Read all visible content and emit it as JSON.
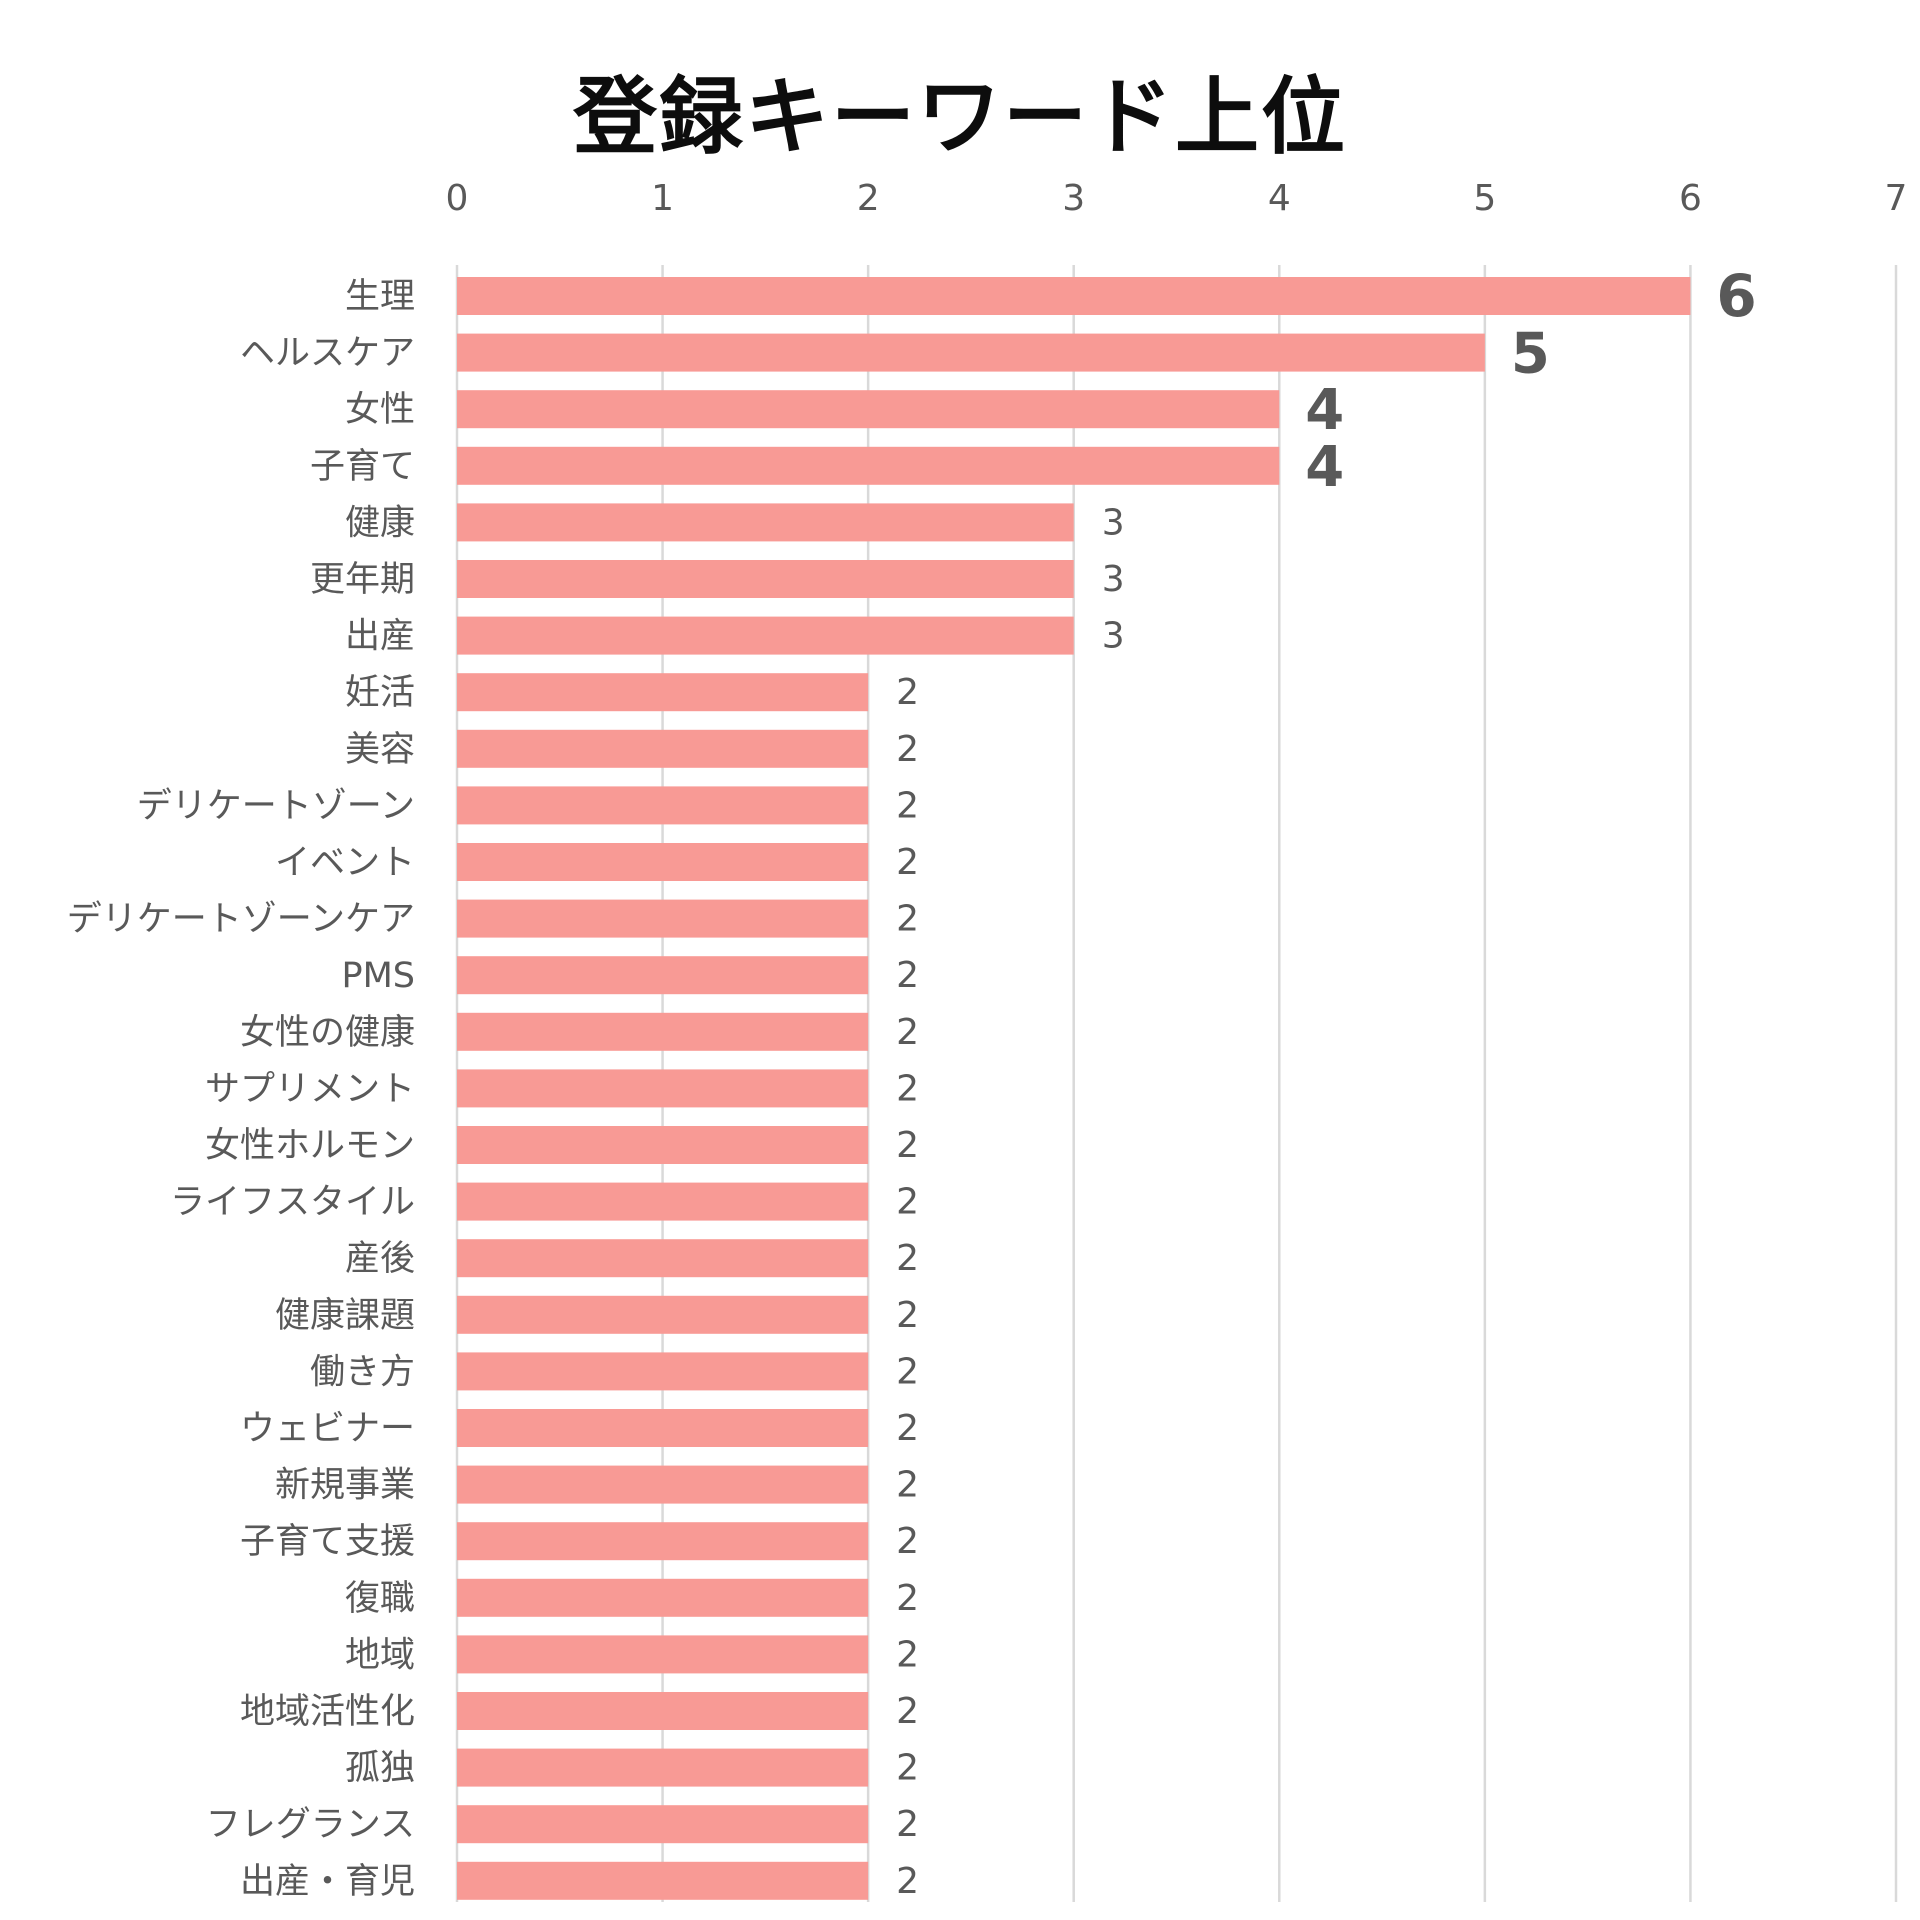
{
  "chart_data": {
    "type": "bar",
    "orientation": "horizontal",
    "title": "登録キーワード上位",
    "xlim": [
      0,
      7
    ],
    "x_ticks": [
      "0",
      "1",
      "2",
      "3",
      "4",
      "5",
      "6",
      "7"
    ],
    "x_axis_position": "top",
    "grid": true,
    "legend": "none",
    "bar_color": "#f89a95",
    "categories": [
      "生理",
      "ヘルスケア",
      "女性",
      "子育て",
      "健康",
      "更年期",
      "出産",
      "妊活",
      "美容",
      "デリケートゾーン",
      "イベント",
      "デリケートゾーンケア",
      "PMS",
      "女性の健康",
      "サプリメント",
      "女性ホルモン",
      "ライフスタイル",
      "産後",
      "健康課題",
      "働き方",
      "ウェビナー",
      "新規事業",
      "子育て支援",
      "復職",
      "地域",
      "地域活性化",
      "孤独",
      "フレグランス",
      "出産・育児"
    ],
    "values": [
      6,
      5,
      4,
      4,
      3,
      3,
      3,
      2,
      2,
      2,
      2,
      2,
      2,
      2,
      2,
      2,
      2,
      2,
      2,
      2,
      2,
      2,
      2,
      2,
      2,
      2,
      2,
      2,
      2
    ],
    "data_labels": [
      "6",
      "5",
      "4",
      "4",
      "3",
      "3",
      "3",
      "2",
      "2",
      "2",
      "2",
      "2",
      "2",
      "2",
      "2",
      "2",
      "2",
      "2",
      "2",
      "2",
      "2",
      "2",
      "2",
      "2",
      "2",
      "2",
      "2",
      "2",
      "2"
    ],
    "emphasized_label_min_value": 4
  }
}
